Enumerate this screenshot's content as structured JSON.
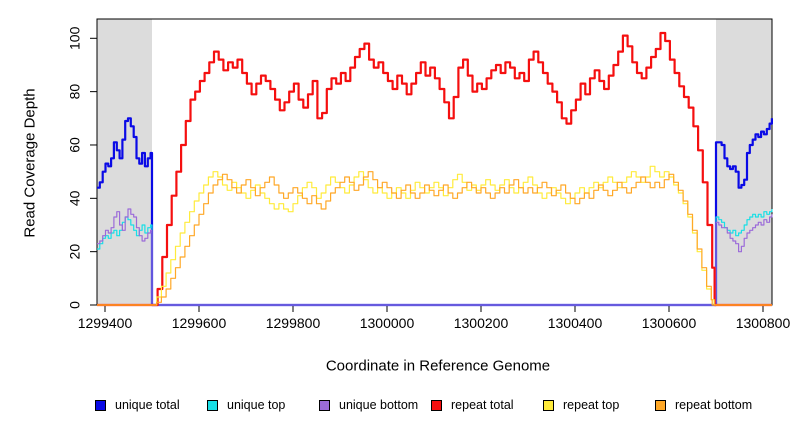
{
  "chart_data": {
    "type": "line",
    "title": "",
    "xlabel": "Coordinate in Reference Genome",
    "ylabel": "Read Coverage Depth",
    "xlim": [
      1299383,
      1300820
    ],
    "ylim": [
      0,
      107
    ],
    "x_ticks": [
      1299400,
      1299600,
      1299800,
      1300000,
      1300200,
      1300400,
      1300600,
      1300800
    ],
    "y_ticks": [
      0,
      20,
      40,
      60,
      80,
      100
    ],
    "grid": false,
    "legend_position": "bottom",
    "background_color": "#ffffff",
    "shaded_region_color": "#dcdcdc",
    "shaded_regions": [
      {
        "x1": 1299383,
        "x2": 1299500
      },
      {
        "x1": 1300700,
        "x2": 1300820
      }
    ],
    "series": [
      {
        "name": "unique total",
        "color": "#0a0ae6",
        "width": 2.2,
        "step": true,
        "segments": [
          {
            "x0": 1299383,
            "dx": 6,
            "v": [
              44,
              46,
              50,
              53,
              52,
              55,
              61,
              58,
              55,
              62,
              69,
              70,
              67,
              63,
              55,
              53,
              57,
              52,
              55,
              57
            ]
          },
          {
            "x0": 1299500,
            "dx": 1200,
            "v": [
              0,
              0
            ]
          },
          {
            "x0": 1300700,
            "dx": 6,
            "v": [
              61,
              61,
              60,
              55,
              52,
              51,
              52,
              50,
              44,
              45,
              47,
              57,
              60,
              62,
              64,
              63,
              65,
              64,
              66,
              68
            ]
          },
          {
            "x0": 1300819,
            "dx": 1,
            "v": [
              70
            ]
          }
        ]
      },
      {
        "name": "unique top",
        "color": "#18dfe6",
        "width": 1.2,
        "step": true,
        "segments": [
          {
            "x0": 1299383,
            "dx": 6,
            "v": [
              21,
              23,
              25,
              26,
              25,
              27,
              28,
              26,
              28,
              31,
              33,
              32,
              30,
              28,
              26,
              28,
              30,
              27,
              29,
              30
            ]
          },
          {
            "x0": 1299500,
            "dx": 1200,
            "v": [
              0,
              0
            ]
          },
          {
            "x0": 1300700,
            "dx": 6,
            "v": [
              33,
              32,
              31,
              29,
              28,
              27,
              28,
              26,
              27,
              28,
              30,
              32,
              33,
              34,
              33,
              34,
              33,
              35,
              34,
              35
            ]
          },
          {
            "x0": 1300819,
            "dx": 1,
            "v": [
              36
            ]
          }
        ]
      },
      {
        "name": "unique bottom",
        "color": "#9b6bd9",
        "width": 1.2,
        "step": true,
        "segments": [
          {
            "x0": 1299383,
            "dx": 6,
            "v": [
              23,
              24,
              26,
              28,
              27,
              29,
              33,
              35,
              30,
              28,
              33,
              36,
              34,
              33,
              29,
              26,
              24,
              25,
              27,
              28
            ]
          },
          {
            "x0": 1299500,
            "dx": 1200,
            "v": [
              0,
              0
            ]
          },
          {
            "x0": 1300700,
            "dx": 6,
            "v": [
              31,
              30,
              29,
              29,
              27,
              25,
              24,
              23,
              20,
              22,
              25,
              27,
              28,
              29,
              30,
              31,
              30,
              32,
              31,
              33
            ]
          },
          {
            "x0": 1300819,
            "dx": 1,
            "v": [
              34
            ]
          }
        ]
      },
      {
        "name": "repeat total",
        "color": "#f50f0f",
        "width": 2.2,
        "step": true,
        "segments": [
          {
            "x0": 1299383,
            "dx": 117,
            "v": [
              0,
              0
            ]
          },
          {
            "x0": 1299502,
            "dx": 10,
            "v": [
              0,
              6,
              18,
              30,
              41,
              50,
              60,
              69,
              77,
              80,
              84,
              87,
              91,
              95,
              92,
              88,
              91,
              89,
              92,
              87,
              83,
              79,
              83,
              86,
              84,
              81,
              77,
              73,
              76,
              80,
              83,
              77,
              74,
              79,
              84,
              70,
              72,
              81,
              85,
              83,
              87,
              84,
              89,
              93,
              96,
              98,
              92,
              89,
              91,
              87,
              84,
              81,
              86,
              83,
              79,
              83,
              87,
              91,
              86,
              89,
              85,
              81,
              76,
              70,
              78,
              89,
              92,
              86,
              80,
              83,
              81,
              85,
              88,
              90,
              87,
              91,
              89,
              85,
              87,
              84,
              92,
              95,
              91,
              87,
              83,
              80,
              76,
              70,
              68,
              73,
              77,
              83,
              79,
              85,
              88,
              84,
              81,
              86,
              90,
              95,
              101,
              97,
              91,
              87,
              85,
              89,
              93,
              96,
              102,
              99,
              92,
              87,
              82,
              78,
              74,
              67,
              58,
              46,
              30,
              14
            ]
          },
          {
            "x0": 1300697,
            "dx": 122,
            "v": [
              0,
              0
            ]
          }
        ]
      },
      {
        "name": "repeat top",
        "color": "#ffeb3c",
        "width": 1.2,
        "step": true,
        "segments": [
          {
            "x0": 1299383,
            "dx": 117,
            "v": [
              0,
              0
            ]
          },
          {
            "x0": 1299500,
            "dx": 10,
            "v": [
              0,
              3,
              7,
              12,
              17,
              22,
              27,
              31,
              35,
              39,
              42,
              45,
              48,
              50,
              48,
              45,
              43,
              46,
              44,
              42,
              40,
              43,
              45,
              42,
              40,
              38,
              36,
              38,
              36,
              35,
              38,
              41,
              44,
              46,
              44,
              40,
              42,
              45,
              48,
              46,
              44,
              42,
              45,
              48,
              50,
              47,
              44,
              42,
              44,
              42,
              40,
              42,
              44,
              42,
              40,
              43,
              46,
              44,
              42,
              44,
              46,
              44,
              41,
              44,
              47,
              49,
              46,
              43,
              45,
              43,
              45,
              47,
              45,
              43,
              45,
              47,
              44,
              42,
              44,
              46,
              48,
              45,
              42,
              40,
              42,
              44,
              42,
              40,
              38,
              40,
              42,
              44,
              42,
              44,
              46,
              44,
              46,
              48,
              46,
              44,
              46,
              48,
              50,
              48,
              46,
              48,
              52,
              50,
              48,
              50,
              48,
              45,
              42,
              38,
              33,
              27,
              20,
              13,
              6,
              2
            ]
          },
          {
            "x0": 1300696,
            "dx": 123,
            "v": [
              0,
              0
            ]
          }
        ]
      },
      {
        "name": "repeat bottom",
        "color": "#ffa827",
        "width": 1.2,
        "step": true,
        "segments": [
          {
            "x0": 1299383,
            "dx": 117,
            "v": [
              0,
              0
            ]
          },
          {
            "x0": 1299500,
            "dx": 10,
            "v": [
              0,
              1,
              3,
              6,
              10,
              14,
              18,
              22,
              26,
              30,
              34,
              38,
              42,
              45,
              47,
              49,
              47,
              44,
              42,
              45,
              47,
              44,
              41,
              44,
              46,
              48,
              45,
              42,
              40,
              42,
              44,
              42,
              40,
              38,
              41,
              38,
              36,
              39,
              42,
              44,
              46,
              48,
              46,
              43,
              45,
              48,
              50,
              47,
              44,
              46,
              44,
              42,
              40,
              43,
              45,
              42,
              40,
              42,
              45,
              43,
              41,
              43,
              45,
              42,
              40,
              42,
              44,
              46,
              44,
              42,
              44,
              42,
              40,
              42,
              44,
              42,
              45,
              47,
              44,
              42,
              44,
              42,
              44,
              46,
              44,
              41,
              43,
              45,
              42,
              40,
              38,
              40,
              42,
              40,
              43,
              45,
              43,
              41,
              43,
              46,
              44,
              42,
              44,
              46,
              48,
              46,
              44,
              46,
              44,
              47,
              49,
              46,
              43,
              39,
              34,
              28,
              21,
              14,
              7,
              2
            ]
          },
          {
            "x0": 1300692,
            "dx": 127,
            "v": [
              0,
              0
            ]
          }
        ]
      }
    ]
  },
  "legend": {
    "items": [
      {
        "label": "unique total",
        "color": "#0a0ae6"
      },
      {
        "label": "unique top",
        "color": "#18dfe6"
      },
      {
        "label": "unique bottom",
        "color": "#9b6bd9"
      },
      {
        "label": "repeat total",
        "color": "#f50f0f"
      },
      {
        "label": "repeat top",
        "color": "#ffeb3c"
      },
      {
        "label": "repeat bottom",
        "color": "#ffa827"
      }
    ]
  }
}
